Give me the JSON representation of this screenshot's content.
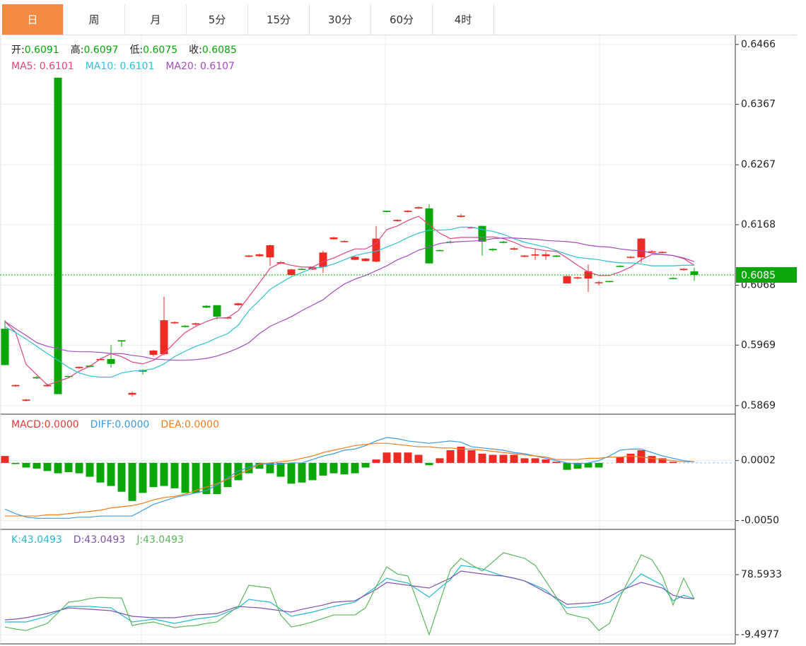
{
  "tabs": [
    "日",
    "周",
    "月",
    "5分",
    "15分",
    "30分",
    "60分",
    "4时"
  ],
  "chart_data": [
    {
      "type": "candlestick",
      "ohlc_labels": [
        {
          "label": "开:",
          "value": 0.6091
        },
        {
          "label": "高:",
          "value": 0.6097
        },
        {
          "label": "低:",
          "value": 0.6075
        },
        {
          "label": "收:",
          "value": 0.6085
        }
      ],
      "open": [
        0.5996,
        0.5901,
        0.5877,
        0.5916,
        0.5901,
        0.6411,
        0.5918,
        0.5931,
        0.5935,
        0.5945,
        0.5946,
        0.5977,
        0.5887,
        0.5928,
        0.5953,
        0.5954,
        0.6005,
        0.6001,
        0.6003,
        0.6034,
        0.6035,
        0.6013,
        0.6035,
        0.6115,
        0.6116,
        0.6114,
        0.6104,
        0.6085,
        0.6095,
        0.6094,
        0.6098,
        0.6144,
        0.614,
        0.611,
        0.6108,
        0.6107,
        0.6191,
        0.6174,
        0.6189,
        0.6195,
        0.6195,
        0.6126,
        0.614,
        0.6181,
        0.6163,
        0.6166,
        0.6128,
        0.614,
        0.6127,
        0.6115,
        0.6117,
        0.6116,
        0.6117,
        0.6071,
        0.608,
        0.6079,
        0.6072,
        0.6075,
        0.61,
        0.6114,
        0.6114,
        0.6123,
        0.6122,
        0.608,
        0.6093,
        0.6091
      ],
      "high": [
        0.601,
        0.5904,
        0.588,
        0.5918,
        0.5905,
        0.6411,
        0.5918,
        0.5934,
        0.5936,
        0.5948,
        0.5969,
        0.5977,
        0.5892,
        0.5929,
        0.5961,
        0.6049,
        0.6008,
        0.6002,
        0.6006,
        0.6035,
        0.6035,
        0.6016,
        0.6039,
        0.6118,
        0.612,
        0.6135,
        0.6108,
        0.6095,
        0.6096,
        0.6099,
        0.6125,
        0.6148,
        0.6142,
        0.6116,
        0.6113,
        0.6166,
        0.6191,
        0.6177,
        0.6192,
        0.6198,
        0.6202,
        0.6127,
        0.6142,
        0.6186,
        0.6165,
        0.6166,
        0.6129,
        0.6141,
        0.6131,
        0.6118,
        0.6128,
        0.6123,
        0.6118,
        0.6084,
        0.6082,
        0.6102,
        0.6075,
        0.6075,
        0.6101,
        0.6116,
        0.6146,
        0.6126,
        0.6124,
        0.6081,
        0.6096,
        0.6097
      ],
      "low": [
        0.5936,
        0.59,
        0.5876,
        0.5913,
        0.59,
        0.5888,
        0.5916,
        0.593,
        0.5932,
        0.5944,
        0.5932,
        0.5966,
        0.5884,
        0.592,
        0.595,
        0.5952,
        0.6004,
        0.5998,
        0.6001,
        0.603,
        0.6011,
        0.6012,
        0.6034,
        0.6114,
        0.6115,
        0.61,
        0.6103,
        0.6084,
        0.6093,
        0.6093,
        0.6088,
        0.6143,
        0.6139,
        0.6109,
        0.6107,
        0.6106,
        0.6188,
        0.6173,
        0.6188,
        0.6194,
        0.6104,
        0.6124,
        0.6137,
        0.618,
        0.6162,
        0.6117,
        0.6124,
        0.6137,
        0.6126,
        0.6114,
        0.611,
        0.611,
        0.6114,
        0.6071,
        0.6078,
        0.6057,
        0.6068,
        0.6073,
        0.6098,
        0.6112,
        0.6105,
        0.6122,
        0.6121,
        0.6078,
        0.6092,
        0.6075
      ],
      "close": [
        0.5936,
        0.5903,
        0.5879,
        0.5914,
        0.5903,
        0.5888,
        0.5917,
        0.5933,
        0.5933,
        0.5946,
        0.5938,
        0.5975,
        0.589,
        0.5925,
        0.596,
        0.601,
        0.6007,
        0.5999,
        0.6005,
        0.6031,
        0.6016,
        0.6015,
        0.6038,
        0.6117,
        0.6119,
        0.6134,
        0.6106,
        0.6094,
        0.6094,
        0.6098,
        0.6122,
        0.6147,
        0.6141,
        0.6115,
        0.6112,
        0.6145,
        0.6189,
        0.6176,
        0.6191,
        0.6197,
        0.6104,
        0.6125,
        0.6139,
        0.6183,
        0.6164,
        0.614,
        0.6126,
        0.6138,
        0.6129,
        0.6117,
        0.6119,
        0.6119,
        0.6115,
        0.6083,
        0.6081,
        0.6091,
        0.6073,
        0.6074,
        0.6099,
        0.6115,
        0.6145,
        0.6124,
        0.6123,
        0.6079,
        0.6095,
        0.6085
      ],
      "up_color": "#ee2a24",
      "down_color": "#0aa60a",
      "series": [
        {
          "name": "MA5: 0.6101",
          "color": "#e0457b",
          "values": [
            0.6008,
            0.599,
            0.5937,
            0.592,
            0.5903,
            0.5909,
            0.5915,
            0.5926,
            0.5934,
            0.5946,
            0.5955,
            0.595,
            0.5941,
            0.5938,
            0.5944,
            0.5955,
            0.5973,
            0.599,
            0.6,
            0.6008,
            0.6014,
            0.6014,
            0.6026,
            0.6049,
            0.6072,
            0.6096,
            0.6105,
            0.6101,
            0.6098,
            0.6098,
            0.6107,
            0.6113,
            0.6121,
            0.6128,
            0.6128,
            0.6137,
            0.616,
            0.6166,
            0.6175,
            0.6182,
            0.6168,
            0.6154,
            0.6145,
            0.6147,
            0.6147,
            0.6147,
            0.6148,
            0.6145,
            0.6139,
            0.6131,
            0.6128,
            0.6125,
            0.6124,
            0.6113,
            0.6101,
            0.609,
            0.6084,
            0.6084,
            0.609,
            0.6098,
            0.611,
            0.6119,
            0.6119,
            0.6117,
            0.6112,
            0.6101
          ]
        },
        {
          "name": "MA10: 0.6101",
          "color": "#2ec2d6",
          "values": [
            0.5999,
            0.599,
            0.5979,
            0.5967,
            0.5955,
            0.5944,
            0.5932,
            0.5923,
            0.5918,
            0.5916,
            0.5916,
            0.5923,
            0.5926,
            0.5927,
            0.593,
            0.5938,
            0.595,
            0.5959,
            0.5967,
            0.5973,
            0.5981,
            0.5988,
            0.6002,
            0.6026,
            0.6043,
            0.6061,
            0.6072,
            0.6082,
            0.6089,
            0.6096,
            0.6098,
            0.6103,
            0.611,
            0.6117,
            0.6121,
            0.6124,
            0.6131,
            0.6138,
            0.6147,
            0.6154,
            0.6159,
            0.6159,
            0.616,
            0.6164,
            0.6164,
            0.616,
            0.6157,
            0.6152,
            0.6145,
            0.6139,
            0.6135,
            0.6131,
            0.6125,
            0.6119,
            0.6114,
            0.6112,
            0.611,
            0.6107,
            0.6105,
            0.6105,
            0.6103,
            0.61,
            0.61,
            0.61,
            0.6101,
            0.6101
          ]
        },
        {
          "name": "MA20: 0.6107",
          "color": "#a64cbf",
          "values": [
            0.6008,
            0.5996,
            0.5985,
            0.5973,
            0.5967,
            0.5963,
            0.5959,
            0.5958,
            0.5958,
            0.5957,
            0.5955,
            0.5955,
            0.5952,
            0.595,
            0.5946,
            0.5945,
            0.5944,
            0.5944,
            0.5945,
            0.5947,
            0.5951,
            0.5957,
            0.5964,
            0.5973,
            0.5988,
            0.6,
            0.6008,
            0.6016,
            0.6026,
            0.6035,
            0.6044,
            0.6058,
            0.607,
            0.6078,
            0.6084,
            0.6092,
            0.61,
            0.611,
            0.6117,
            0.6126,
            0.6131,
            0.6137,
            0.6139,
            0.614,
            0.6141,
            0.6142,
            0.6145,
            0.6146,
            0.6146,
            0.6145,
            0.6144,
            0.6142,
            0.6141,
            0.614,
            0.6138,
            0.6134,
            0.6132,
            0.6131,
            0.6128,
            0.6126,
            0.6125,
            0.6121,
            0.6119,
            0.6117,
            0.6113,
            0.6107
          ]
        }
      ],
      "ylim": [
        0.5856,
        0.6481
      ],
      "yticks": [
        0.5869,
        0.5969,
        0.6068,
        0.6168,
        0.6267,
        0.6367,
        0.6466
      ],
      "last_price": 0.6085,
      "last_color": "#0aa60a",
      "grid": true
    },
    {
      "type": "macd",
      "up_color": "#ee2a24",
      "down_color": "#0aa60a",
      "series": [
        {
          "name": "MACD:0.0000",
          "color": "#e53935",
          "kind": "bar",
          "values": [
            0.0006,
            -0.0001,
            -0.0004,
            -0.0005,
            -0.0007,
            -0.0009,
            -0.0008,
            -0.0009,
            -0.0012,
            -0.0017,
            -0.002,
            -0.0025,
            -0.0033,
            -0.0026,
            -0.0021,
            -0.002,
            -0.0022,
            -0.0026,
            -0.0026,
            -0.0027,
            -0.0027,
            -0.0021,
            -0.0015,
            -0.0009,
            -0.0005,
            -0.0009,
            -0.0012,
            -0.0018,
            -0.0017,
            -0.0015,
            -0.0011,
            -0.0009,
            -0.001,
            -0.0009,
            -0.0004,
            0.0003,
            0.0009,
            0.0009,
            0.0009,
            0.0007,
            -0.0002,
            0.0004,
            0.0011,
            0.0014,
            0.0011,
            0.0008,
            0.0007,
            0.0007,
            0.0007,
            0.0004,
            0.0004,
            0.0003,
            0.0001,
            -0.0006,
            -0.0005,
            -0.0004,
            -0.0004,
            0,
            0.0005,
            0.0008,
            0.0011,
            0.0006,
            0.0004,
            0.0001,
            0,
            0
          ]
        },
        {
          "name": "DIFF:0.0000",
          "color": "#3d9be0",
          "values": [
            -0.004,
            -0.0044,
            -0.0047,
            -0.0048,
            -0.0048,
            -0.0048,
            -0.0048,
            -0.0047,
            -0.0047,
            -0.0046,
            -0.0046,
            -0.0046,
            -0.0046,
            -0.0041,
            -0.0036,
            -0.0033,
            -0.003,
            -0.0028,
            -0.0026,
            -0.0024,
            -0.0019,
            -0.0013,
            -0.0007,
            -0.0004,
            -0.0001,
            -0.0001,
            -0.0001,
            0,
            0,
            0.0003,
            0.0006,
            0.0008,
            0.0011,
            0.0012,
            0.0015,
            0.0019,
            0.0022,
            0.0021,
            0.0019,
            0.0018,
            0.0017,
            0.0018,
            0.0019,
            0.0018,
            0.0014,
            0.0013,
            0.0012,
            0.0011,
            0.0009,
            0.0008,
            0.0006,
            0.0004,
            0.0002,
            0,
            -0.0001,
            0,
            0.0002,
            0.0006,
            0.0011,
            0.0012,
            0.0012,
            0.0009,
            0.0006,
            0.0004,
            0.0002,
            0.0001
          ]
        },
        {
          "name": "DEA:0.0000",
          "color": "#f07d1f",
          "values": [
            -0.0046,
            -0.0046,
            -0.0046,
            -0.0046,
            -0.0045,
            -0.0045,
            -0.0044,
            -0.0043,
            -0.0042,
            -0.0041,
            -0.0039,
            -0.0038,
            -0.0037,
            -0.0035,
            -0.0032,
            -0.003,
            -0.0029,
            -0.0027,
            -0.0024,
            -0.0021,
            -0.0018,
            -0.0014,
            -0.001,
            -0.0006,
            -0.0001,
            0,
            0.0001,
            0.0002,
            0.0004,
            0.0006,
            0.0009,
            0.0011,
            0.0013,
            0.0015,
            0.0016,
            0.0017,
            0.0017,
            0.0016,
            0.0015,
            0.0014,
            0.0014,
            0.0013,
            0.0013,
            0.0012,
            0.0012,
            0.0011,
            0.001,
            0.0009,
            0.0008,
            0.0007,
            0.0006,
            0.0005,
            0.0003,
            0.0003,
            0.0003,
            0.0004,
            0.0004,
            0.0005,
            0.0005,
            0.0006,
            0.0005,
            0.0004,
            0.0003,
            0.0002,
            0.0001,
            0.0001
          ]
        }
      ],
      "ylim": [
        -0.0057,
        0.0041
      ],
      "yticks": [
        {
          "value": -0.005,
          "label": "-0.0050"
        },
        0.0002
      ],
      "grid": true
    },
    {
      "type": "line",
      "series": [
        {
          "name": "K:43.0493",
          "color": "#27b8d2",
          "values": [
            9.2,
            9.2,
            9.2,
            13.3,
            17.5,
            24.7,
            32.0,
            32.0,
            32.0,
            30.9,
            29.9,
            19.5,
            9.2,
            11.2,
            13.3,
            10.2,
            7.1,
            10.2,
            13.3,
            15.4,
            17.5,
            23.7,
            29.9,
            42.3,
            40.2,
            38.2,
            27.8,
            17.5,
            20.6,
            23.7,
            27.8,
            32.0,
            35.1,
            38.2,
            49.6,
            61.0,
            73.4,
            69.3,
            66.2,
            55.8,
            45.4,
            58.9,
            71.3,
            92.1,
            90.0,
            86.9,
            81.7,
            76.5,
            73.4,
            69.3,
            63.0,
            55.8,
            42.3,
            29.9,
            30.9,
            32.0,
            35.1,
            38.2,
            50.6,
            65.1,
            79.6,
            71.3,
            63.0,
            40.2,
            48.5,
            43.0493
          ]
        },
        {
          "name": "D:43.0493",
          "color": "#7e52ae",
          "values": [
            12.3,
            13.3,
            15.4,
            18.5,
            21.6,
            25.7,
            29.9,
            28.8,
            27.8,
            26.8,
            25.7,
            21.6,
            17.5,
            16.4,
            15.4,
            15.4,
            15.4,
            17.5,
            19.5,
            20.6,
            21.6,
            26.8,
            32.0,
            30.9,
            29.9,
            27.8,
            25.7,
            23.7,
            27.8,
            30.9,
            34.0,
            38.2,
            39.2,
            40.2,
            48.5,
            56.8,
            67.2,
            65.1,
            63.0,
            61.0,
            58.9,
            66.2,
            73.4,
            83.8,
            81.7,
            79.6,
            77.6,
            76.5,
            73.4,
            69.3,
            61.0,
            52.7,
            44.4,
            35.1,
            36.1,
            37.1,
            38.2,
            46.5,
            54.8,
            61.0,
            67.2,
            63.0,
            58.9,
            48.5,
            44.4,
            43.0493
          ]
        },
        {
          "name": "J:43.0493",
          "color": "#5cb85c",
          "values": [
            1.9,
            -1.2,
            -3.3,
            1.9,
            7.1,
            22.6,
            38.2,
            40.2,
            43.4,
            45.4,
            44.4,
            44.4,
            4.0,
            7.1,
            9.2,
            5.0,
            0.9,
            2.9,
            4.0,
            7.1,
            9.2,
            20.6,
            32.0,
            63.0,
            61.0,
            58.9,
            19.5,
            1.9,
            5.0,
            9.2,
            14.3,
            19.5,
            19.5,
            19.5,
            29.9,
            61.0,
            90.0,
            79.6,
            76.5,
            34.0,
            -9.5,
            38.2,
            85.9,
            102.4,
            93.1,
            83.8,
            97.2,
            110.7,
            106.6,
            102.4,
            92.1,
            69.3,
            45.4,
            21.6,
            17.5,
            14.3,
            -3.3,
            7.1,
            45.4,
            76.5,
            107.6,
            100.4,
            76.5,
            34.0,
            73.4,
            43.0493
          ]
        }
      ],
      "ylim": [
        -21.9,
        141.8
      ],
      "yticks": [
        -9.4977,
        78.5933
      ],
      "grid": true
    }
  ]
}
